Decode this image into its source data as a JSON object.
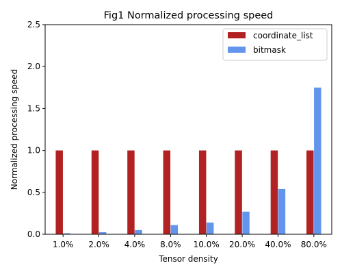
{
  "chart_data": {
    "type": "bar",
    "title": "Fig1 Normalized processing speed",
    "xlabel": "Tensor density",
    "ylabel": "Normalized processing speed",
    "categories": [
      "1.0%",
      "2.0%",
      "4.0%",
      "8.0%",
      "10.0%",
      "20.0%",
      "40.0%",
      "80.0%"
    ],
    "series": [
      {
        "name": "coordinate_list",
        "color": "#b22222",
        "values": [
          1.0,
          1.0,
          1.0,
          1.0,
          1.0,
          1.0,
          1.0,
          1.0
        ]
      },
      {
        "name": "bitmask",
        "color": "#6495ed",
        "values": [
          0.012,
          0.025,
          0.05,
          0.11,
          0.14,
          0.27,
          0.54,
          1.75
        ]
      }
    ],
    "ylim": [
      0,
      2.5
    ],
    "yticks": [
      "0.0",
      "0.5",
      "1.0",
      "1.5",
      "2.0",
      "2.5"
    ],
    "grid": false,
    "legend_position": "top-right"
  }
}
